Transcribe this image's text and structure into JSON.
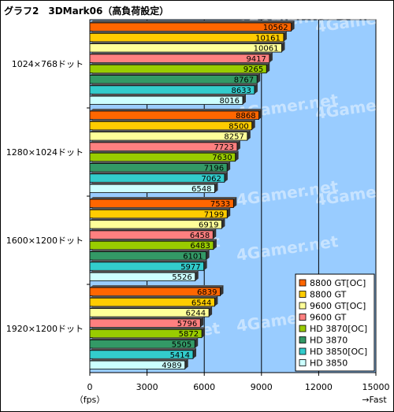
{
  "chart_data": {
    "type": "bar",
    "orientation": "horizontal",
    "title": "グラフ2　3DMark06（高負荷設定）",
    "xlabel": "（fps）",
    "xlabel_right": "→Fast",
    "xlim": [
      0,
      15000
    ],
    "xticks": [
      0,
      3000,
      6000,
      9000,
      12000,
      15000
    ],
    "grid": true,
    "legend_position": "bottom-right",
    "watermark": "4Gamer.net",
    "categories": [
      "1024×768ドット",
      "1280×1024ドット",
      "1600×1200ドット",
      "1920×1200ドット"
    ],
    "series": [
      {
        "name": "8800 GT[OC]",
        "color": "#ff6600",
        "values": [
          10562,
          8868,
          7533,
          6839
        ]
      },
      {
        "name": "8800 GT",
        "color": "#ffcc00",
        "values": [
          10161,
          8500,
          7199,
          6544
        ]
      },
      {
        "name": "9600 GT[OC]",
        "color": "#ffff99",
        "values": [
          10061,
          8257,
          6919,
          6244
        ]
      },
      {
        "name": "9600 GT",
        "color": "#ff8080",
        "values": [
          9417,
          7723,
          6458,
          5796
        ]
      },
      {
        "name": "HD 3870[OC]",
        "color": "#99cc00",
        "values": [
          9265,
          7630,
          6483,
          5872
        ]
      },
      {
        "name": "HD 3870",
        "color": "#339966",
        "values": [
          8767,
          7196,
          6101,
          5505
        ]
      },
      {
        "name": "HD 3850[OC]",
        "color": "#33cccc",
        "values": [
          8633,
          7062,
          5977,
          5414
        ]
      },
      {
        "name": "HD 3850",
        "color": "#ccffff",
        "values": [
          8016,
          6548,
          5526,
          4989
        ]
      }
    ]
  }
}
